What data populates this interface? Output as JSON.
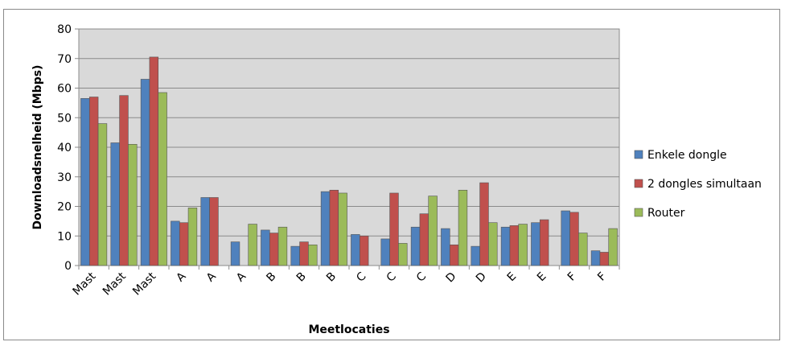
{
  "chart_data": {
    "type": "bar",
    "title": "",
    "xlabel": "Meetlocaties",
    "ylabel": "Downloadsnelheid (Mbps)",
    "ylim": [
      0,
      80
    ],
    "ytick_step": 10,
    "grid": true,
    "legend_position": "right",
    "categories": [
      "Mast",
      "Mast",
      "Mast",
      "A",
      "A",
      "A",
      "B",
      "B",
      "B",
      "C",
      "C",
      "C",
      "D",
      "D",
      "E",
      "E",
      "F",
      "F"
    ],
    "series": [
      {
        "name": "Enkele dongle",
        "color": "#4f81bd",
        "values": [
          56.5,
          41.5,
          63,
          15,
          23,
          8,
          12,
          6.5,
          25,
          10.5,
          9,
          13,
          12.5,
          6.5,
          13,
          14.5,
          18.5,
          5
        ]
      },
      {
        "name": "2 dongles simultaan",
        "color": "#c0504d",
        "values": [
          57,
          57.5,
          70.5,
          14.5,
          23,
          0,
          11,
          8,
          25.5,
          10,
          24.5,
          17.5,
          7,
          28,
          13.5,
          15.5,
          18,
          4.5
        ]
      },
      {
        "name": "Router",
        "color": "#9bbb59",
        "values": [
          48,
          41,
          58.5,
          19.5,
          0,
          14,
          13,
          7,
          24.5,
          0,
          7.5,
          23.5,
          25.5,
          14.5,
          14,
          0,
          11,
          12.5
        ]
      }
    ]
  }
}
